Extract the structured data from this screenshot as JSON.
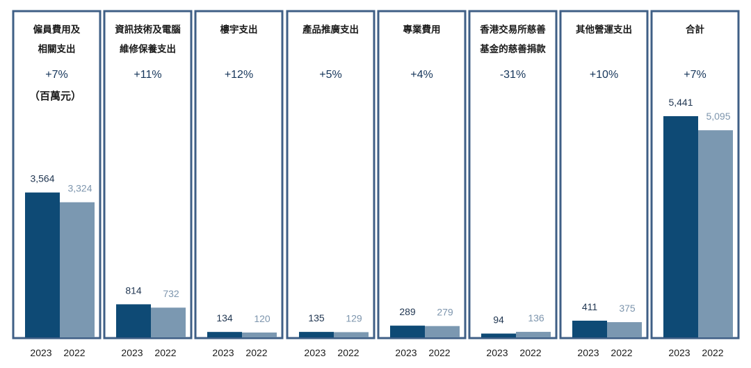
{
  "chart_data": {
    "type": "bar",
    "unit_label": "（百萬元）",
    "series": [
      {
        "name": "2023",
        "color": "#0e4a75"
      },
      {
        "name": "2022",
        "color": "#7b98b1"
      }
    ],
    "years": [
      "2023",
      "2022"
    ],
    "ylim": [
      0,
      5441
    ],
    "panels": [
      {
        "title": [
          "僱員費用及",
          "相關支出"
        ],
        "change": "+7%",
        "values": [
          3564,
          3324
        ],
        "labels": [
          "3,564",
          "3,324"
        ]
      },
      {
        "title": [
          "資訊技術及電腦",
          "維修保養支出"
        ],
        "change": "+11%",
        "values": [
          814,
          732
        ],
        "labels": [
          "814",
          "732"
        ]
      },
      {
        "title": [
          "樓宇支出"
        ],
        "change": "+12%",
        "values": [
          134,
          120
        ],
        "labels": [
          "134",
          "120"
        ]
      },
      {
        "title": [
          "產品推廣支出"
        ],
        "change": "+5%",
        "values": [
          135,
          129
        ],
        "labels": [
          "135",
          "129"
        ]
      },
      {
        "title": [
          "專業費用"
        ],
        "change": "+4%",
        "values": [
          289,
          279
        ],
        "labels": [
          "289",
          "279"
        ]
      },
      {
        "title": [
          "香港交易所慈善",
          "基金的慈善捐款"
        ],
        "change": "-31%",
        "values": [
          94,
          136
        ],
        "labels": [
          "94",
          "136"
        ]
      },
      {
        "title": [
          "其他營運支出"
        ],
        "change": "+10%",
        "values": [
          411,
          375
        ],
        "labels": [
          "411",
          "375"
        ]
      },
      {
        "title": [
          "合計"
        ],
        "change": "+7%",
        "values": [
          5441,
          5095
        ],
        "labels": [
          "5,441",
          "5,095"
        ]
      }
    ]
  }
}
